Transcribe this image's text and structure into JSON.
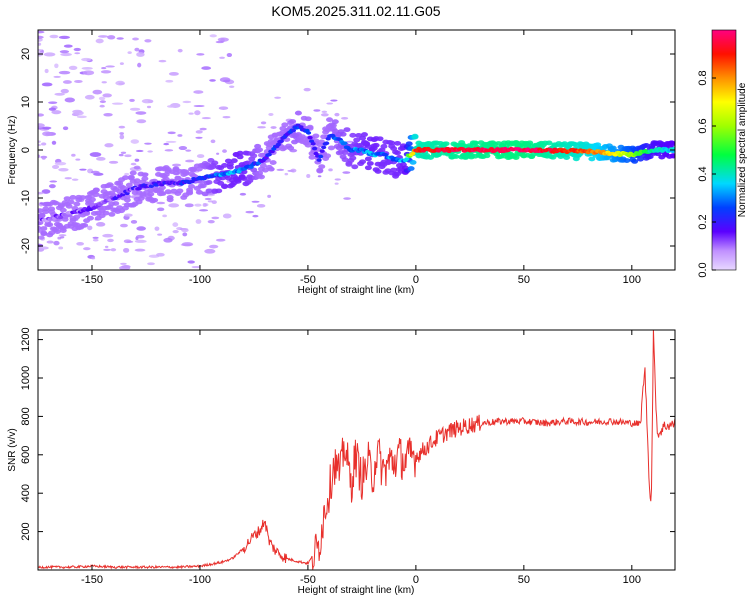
{
  "title": "KOM5.2025.311.02.11.G05",
  "chart_data": [
    {
      "type": "heatmap",
      "title": "KOM5.2025.311.02.11.G05",
      "xlabel": "Height of straight line (km)",
      "ylabel": "Frequency (Hz)",
      "xlim": [
        -175,
        120
      ],
      "ylim": [
        -25,
        25
      ],
      "xticks": [
        "-150",
        "-100",
        "-50",
        "0",
        "50",
        "100"
      ],
      "xtick_values": [
        -150,
        -100,
        -50,
        0,
        50,
        100
      ],
      "yticks": [
        "-20",
        "-10",
        "0",
        "10",
        "20"
      ],
      "ytick_values": [
        -20,
        -10,
        0,
        10,
        20
      ],
      "ridge": {
        "x": [
          -175,
          -150,
          -140,
          -130,
          -120,
          -110,
          -100,
          -90,
          -80,
          -70,
          -60,
          -55,
          -50,
          -45,
          -40,
          -35,
          -30,
          -25,
          -20,
          -15,
          -10,
          -5,
          0,
          20,
          50,
          80,
          100,
          110,
          120
        ],
        "y": [
          -15,
          -12,
          -10,
          -8,
          -7,
          -7,
          -6,
          -5,
          -4,
          -2,
          3,
          5,
          4,
          -2,
          3,
          2,
          0,
          0,
          -1,
          -1,
          -2,
          -2,
          0,
          0,
          0,
          -0.3,
          -1,
          0,
          0
        ],
        "amplitude": [
          0.1,
          0.12,
          0.14,
          0.15,
          0.17,
          0.18,
          0.22,
          0.3,
          0.32,
          0.2,
          0.22,
          0.24,
          0.2,
          0.2,
          0.22,
          0.25,
          0.28,
          0.3,
          0.32,
          0.3,
          0.3,
          0.32,
          0.9,
          0.95,
          0.98,
          0.85,
          0.6,
          0.4,
          0.35
        ]
      },
      "colorbar": {
        "label": "Normalized spectral amplitude",
        "range": [
          0,
          1
        ],
        "ticks": [
          "0.0",
          "0.2",
          "0.4",
          "0.6",
          "0.8"
        ],
        "tick_values": [
          0,
          0.2,
          0.4,
          0.6,
          0.8
        ]
      }
    },
    {
      "type": "line",
      "xlabel": "Height of straight line (km)",
      "ylabel": "SNR (v/v)",
      "xlim": [
        -175,
        120
      ],
      "ylim": [
        0,
        1250
      ],
      "xticks": [
        "-150",
        "-100",
        "-50",
        "0",
        "50",
        "100"
      ],
      "xtick_values": [
        -150,
        -100,
        -50,
        0,
        50,
        100
      ],
      "yticks": [
        "200",
        "400",
        "600",
        "800",
        "1000",
        "1200"
      ],
      "ytick_values": [
        200,
        400,
        600,
        800,
        1000,
        1200
      ],
      "series": [
        {
          "name": "SNR",
          "color": "#e8302c",
          "x": [
            -175,
            -160,
            -150,
            -140,
            -130,
            -120,
            -110,
            -100,
            -90,
            -85,
            -80,
            -75,
            -72,
            -70,
            -68,
            -65,
            -60,
            -55,
            -50,
            -45,
            -42,
            -40,
            -38,
            -35,
            -33,
            -30,
            -28,
            -25,
            -22,
            -20,
            -18,
            -15,
            -12,
            -10,
            -8,
            -5,
            -2,
            0,
            5,
            10,
            15,
            20,
            25,
            30,
            35,
            40,
            50,
            60,
            70,
            80,
            90,
            100,
            104,
            106,
            107,
            108,
            109,
            110,
            111,
            112,
            115,
            120
          ],
          "y": [
            15,
            15,
            20,
            15,
            15,
            15,
            15,
            20,
            40,
            60,
            110,
            180,
            210,
            260,
            150,
            100,
            60,
            45,
            35,
            120,
            330,
            420,
            560,
            500,
            660,
            440,
            600,
            470,
            560,
            480,
            620,
            510,
            570,
            560,
            600,
            560,
            600,
            590,
            640,
            690,
            720,
            740,
            755,
            765,
            770,
            775,
            775,
            765,
            775,
            770,
            775,
            765,
            760,
            1060,
            780,
            480,
            320,
            1240,
            900,
            700,
            750,
            760
          ]
        }
      ]
    }
  ]
}
